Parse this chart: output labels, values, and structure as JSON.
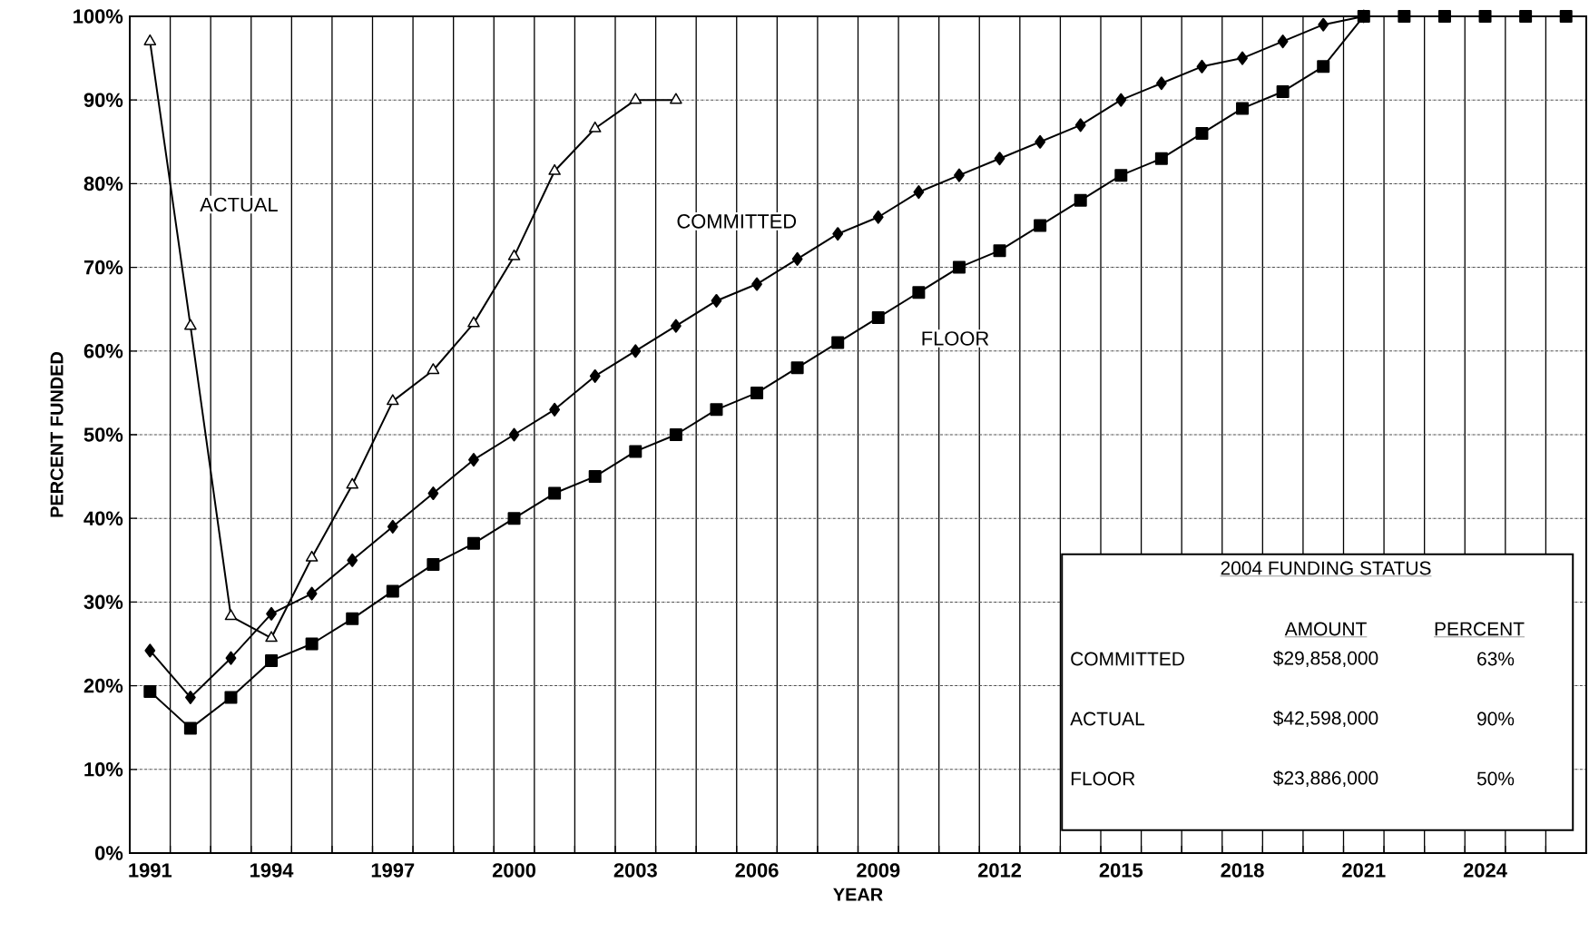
{
  "chart_data": {
    "type": "line",
    "xlabel": "YEAR",
    "ylabel": "PERCENT FUNDED",
    "categories": [
      "1991",
      null,
      null,
      "1994",
      null,
      null,
      "1997",
      null,
      null,
      "2000",
      null,
      null,
      "2003",
      null,
      null,
      "2006",
      null,
      null,
      "2009",
      null,
      null,
      "2012",
      null,
      null,
      "2015",
      null,
      null,
      "2018",
      null,
      null,
      "2021",
      null,
      null,
      "2024",
      null,
      null
    ],
    "series": [
      {
        "name": "ACTUAL",
        "color": "#000000",
        "marker": "triangle",
        "values": [
          97,
          63,
          28.3,
          25.7,
          35.3,
          44,
          54,
          57.7,
          63.3,
          71.3,
          81.5,
          86.6,
          90,
          90,
          null,
          null,
          null,
          null,
          null,
          null,
          null,
          null,
          null,
          null,
          null,
          null,
          null,
          null,
          null,
          null,
          null,
          null,
          null,
          null,
          null,
          null
        ]
      },
      {
        "name": "COMMITTED",
        "color": "#000000",
        "marker": "diamond",
        "values": [
          24.2,
          18.6,
          23.3,
          28.6,
          31,
          35,
          39,
          43,
          47,
          50,
          53,
          57,
          60,
          63,
          66,
          68,
          71,
          74,
          76,
          79,
          81,
          83,
          85,
          87,
          90,
          92,
          94,
          95,
          97,
          99,
          100,
          null,
          null,
          null,
          null,
          null
        ]
      },
      {
        "name": "FLOOR",
        "color": "#000000",
        "marker": "square",
        "values": [
          19.3,
          14.9,
          18.6,
          23,
          25,
          28,
          31.3,
          34.5,
          37,
          40,
          43,
          45,
          48,
          50,
          53,
          55,
          58,
          61,
          64,
          67,
          70,
          72,
          75,
          78,
          81,
          83,
          86,
          89,
          91,
          94,
          100,
          100,
          100,
          100,
          100,
          100
        ]
      }
    ],
    "ylim": [
      0,
      100
    ],
    "yticks": [
      {
        "value": 0,
        "label": "0%"
      },
      {
        "value": 10,
        "label": "10%"
      },
      {
        "value": 20,
        "label": "20%"
      },
      {
        "value": 30,
        "label": "30%"
      },
      {
        "value": 40,
        "label": "40%"
      },
      {
        "value": 50,
        "label": "50%"
      },
      {
        "value": 60,
        "label": "60%"
      },
      {
        "value": 70,
        "label": "70%"
      },
      {
        "value": 80,
        "label": "80%"
      },
      {
        "value": 90,
        "label": "90%"
      },
      {
        "value": 100,
        "label": "100%"
      }
    ],
    "grid": true,
    "line_style": "solid",
    "annotations": [
      "2004 FUNDING STATUS",
      "AMOUNT",
      "PERCENT",
      "COMMITTED",
      "$29,858,000",
      "63%",
      "ACTUAL",
      "$42,598,000",
      "90%",
      "FLOOR",
      "$23,886,000",
      "50%"
    ]
  }
}
